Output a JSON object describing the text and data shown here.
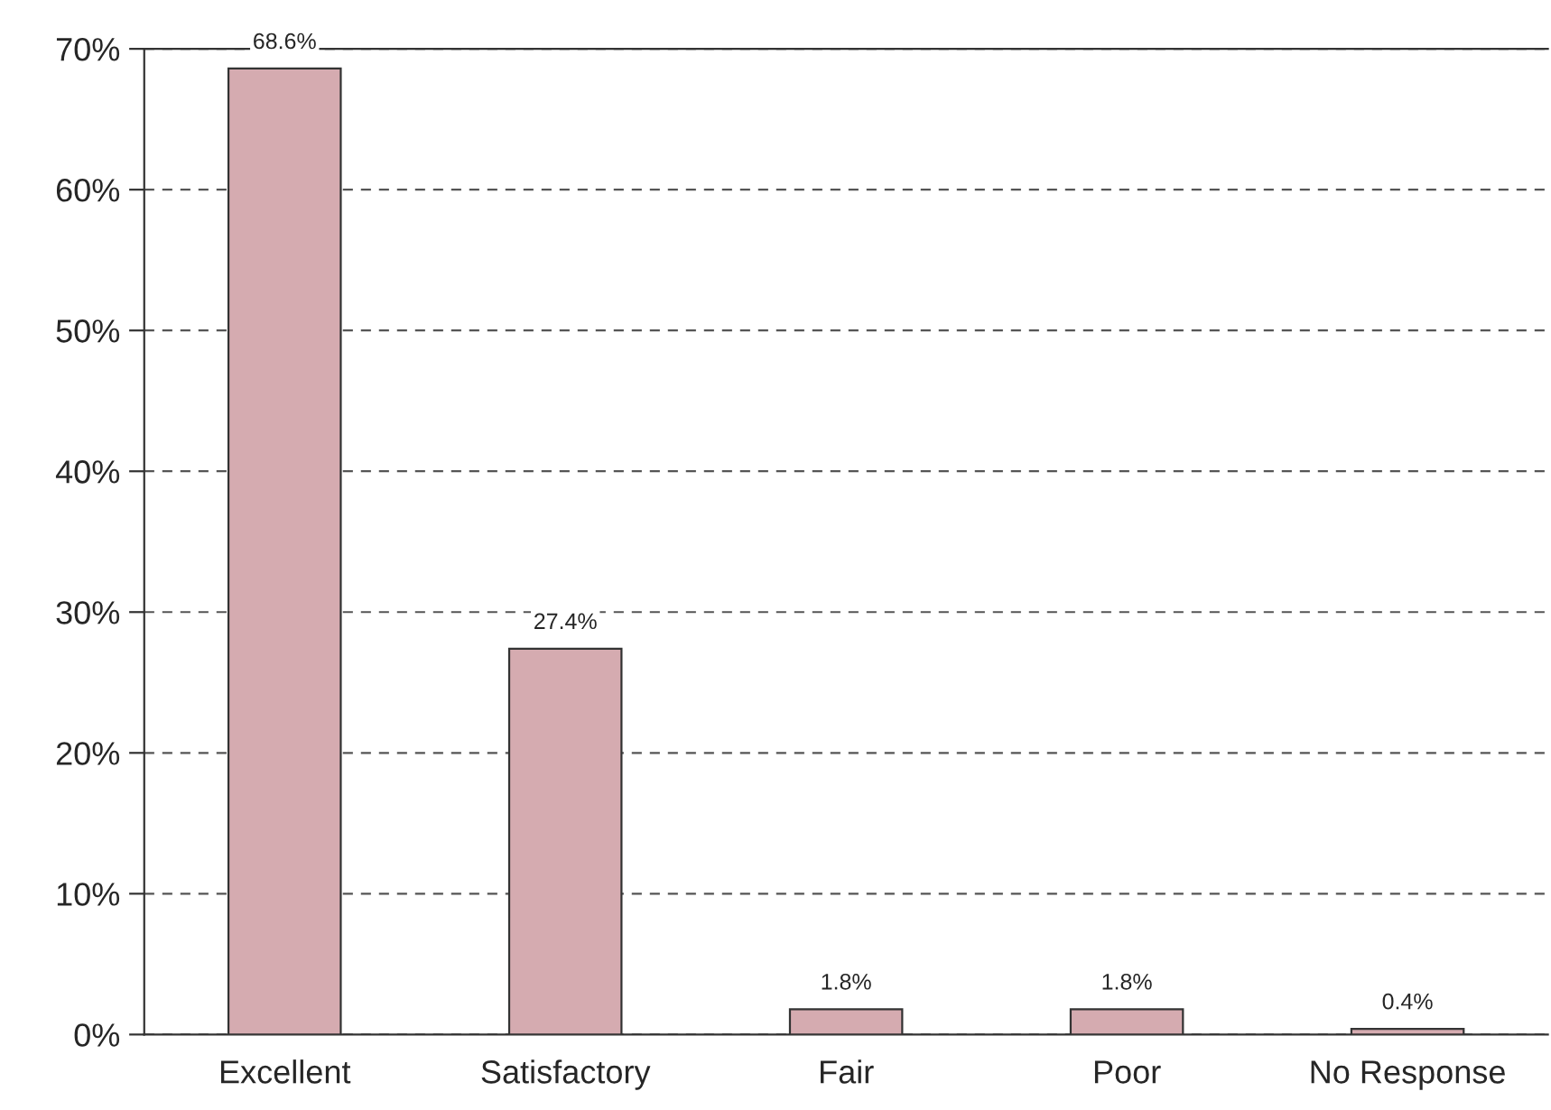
{
  "chart_data": {
    "type": "bar",
    "categories": [
      "Excellent",
      "Satisfactory",
      "Fair",
      "Poor",
      "No Response"
    ],
    "values": [
      68.6,
      27.4,
      1.8,
      1.8,
      0.4
    ],
    "value_labels": [
      "68.6%",
      "27.4%",
      "1.8%",
      "1.8%",
      "0.4%"
    ],
    "color": "#d5abb0",
    "ylim": [
      0,
      70
    ],
    "yticks": [
      {
        "value": 0,
        "label": "0%"
      },
      {
        "value": 10,
        "label": "10%"
      },
      {
        "value": 20,
        "label": "20%"
      },
      {
        "value": 30,
        "label": "30%"
      },
      {
        "value": 40,
        "label": "40%"
      },
      {
        "value": 50,
        "label": "50%"
      },
      {
        "value": 60,
        "label": "60%"
      },
      {
        "value": 70,
        "label": "70%"
      }
    ],
    "grid": "y",
    "legend": false
  }
}
